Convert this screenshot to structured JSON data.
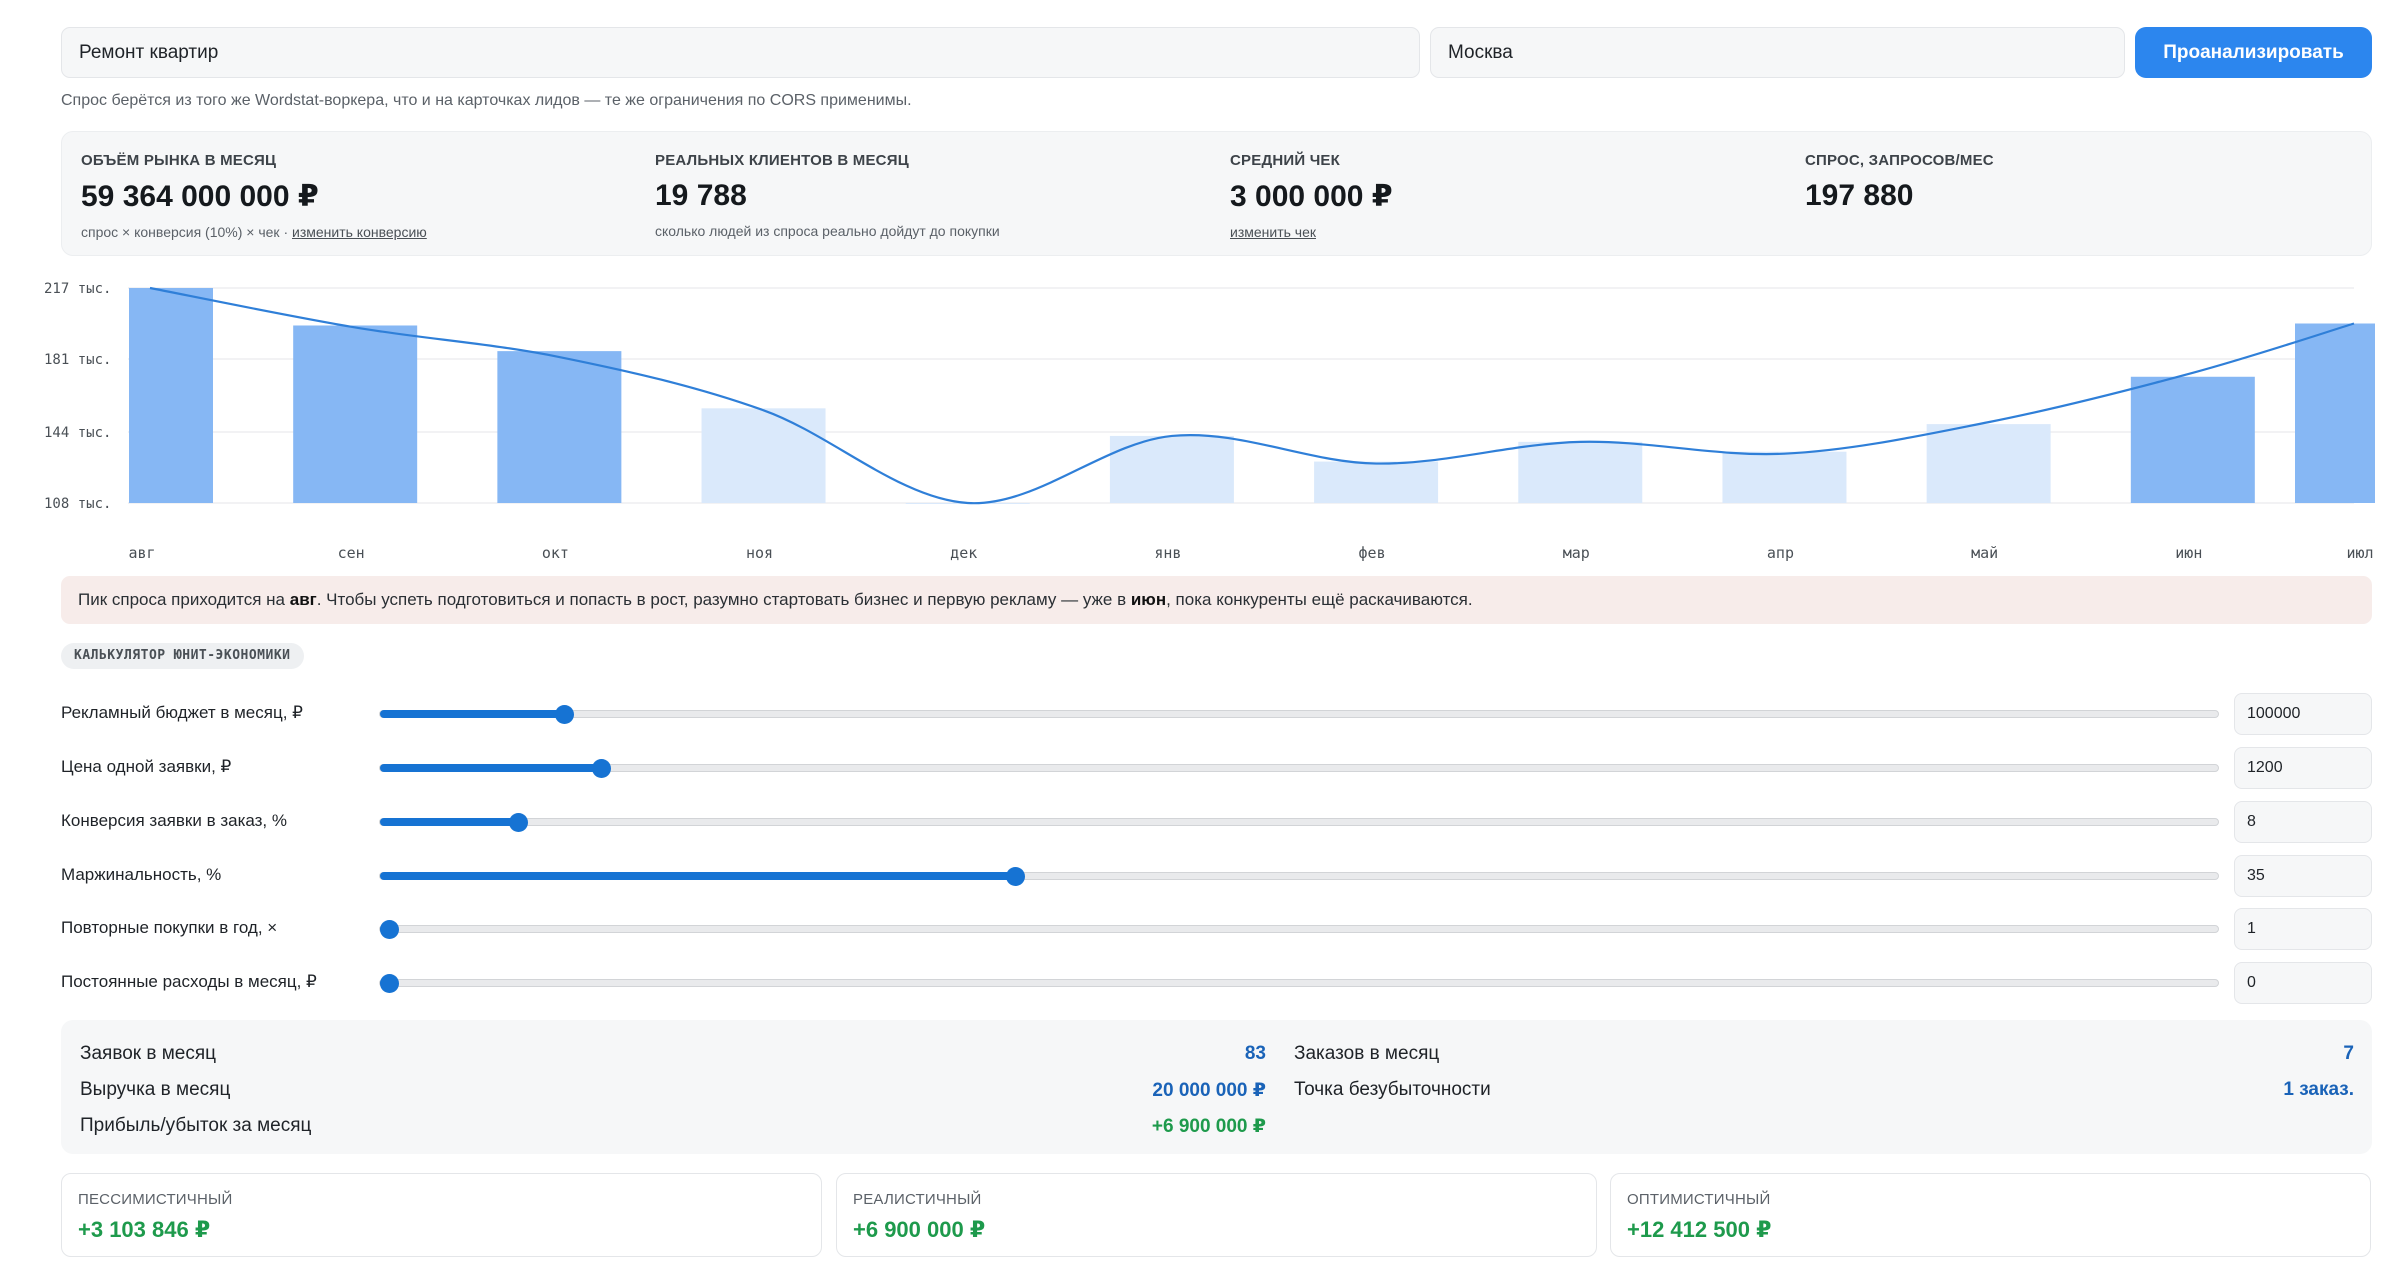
{
  "search": {
    "query": "Ремонт квартир",
    "city": "Москва",
    "button_label": "Проанализировать",
    "note": "Спрос берётся из того же Wordstat-воркера, что и на карточках лидов — те же ограничения по CORS применимы."
  },
  "metrics": [
    {
      "label": "ОБЪЁМ РЫНКА В МЕСЯЦ",
      "value": "59 364 000 000 ₽",
      "sub": "спрос × конверсия (10%) × чек · ",
      "link": "изменить конверсию"
    },
    {
      "label": "РЕАЛЬНЫХ КЛИЕНТОВ В МЕСЯЦ",
      "value": "19 788",
      "sub": "сколько людей из спроса реально дойдут до покупки",
      "link": ""
    },
    {
      "label": "СРЕДНИЙ ЧЕК",
      "value": "3 000 000 ₽",
      "sub": "",
      "link": "изменить чек"
    },
    {
      "label": "СПРОС, ЗАПРОСОВ/МЕС",
      "value": "197 880",
      "sub": "",
      "link": ""
    }
  ],
  "chart_data": {
    "type": "bar",
    "categories": [
      "авг",
      "сен",
      "окт",
      "ноя",
      "дек",
      "янв",
      "фев",
      "мар",
      "апр",
      "май",
      "июн",
      "июл"
    ],
    "values": [
      217,
      198,
      185,
      156,
      108,
      142,
      129,
      139,
      134,
      148,
      172,
      199
    ],
    "highlighted": [
      true,
      true,
      true,
      false,
      false,
      false,
      false,
      false,
      false,
      false,
      true,
      true
    ],
    "trend_line": [
      217,
      197,
      182,
      155,
      108,
      142,
      128,
      139,
      133,
      149,
      174,
      199
    ],
    "y_ticks": [
      "217 тыс.",
      "181 тыс.",
      "144 тыс.",
      "108 тыс."
    ],
    "y_tick_values": [
      217,
      181,
      144,
      108
    ],
    "ylim": [
      108,
      217
    ],
    "unit": "тыс.",
    "grid": true,
    "colors": {
      "bar_strong": "#86b7f4",
      "bar_light": "#dae9fb",
      "line": "#2f7fd8",
      "grid": "#e4e6e9"
    }
  },
  "banner": {
    "prefix": "Пик спроса приходится на ",
    "peak_month": "авг",
    "middle": ". Чтобы успеть подготовиться и попасть в рост, разумно стартовать бизнес и первую рекламу — уже в ",
    "start_month": "июн",
    "suffix": ", пока конкуренты ещё раскачиваются."
  },
  "calculator": {
    "tag": "КАЛЬКУЛЯТОР ЮНИТ-ЭКОНОМИКИ",
    "sliders": [
      {
        "label": "Рекламный бюджет в месяц, ₽",
        "value": "100000",
        "fraction": 0.1
      },
      {
        "label": "Цена одной заявки, ₽",
        "value": "1200",
        "fraction": 0.12
      },
      {
        "label": "Конверсия заявки в заказ, %",
        "value": "8",
        "fraction": 0.075
      },
      {
        "label": "Маржинальность, %",
        "value": "35",
        "fraction": 0.345
      },
      {
        "label": "Повторные покупки в год, ×",
        "value": "1",
        "fraction": 0.005
      },
      {
        "label": "Постоянные расходы в месяц, ₽",
        "value": "0",
        "fraction": 0.005
      }
    ]
  },
  "results": {
    "leads_label": "Заявок в месяц",
    "leads_value": "83",
    "orders_label": "Заказов в месяц",
    "orders_value": "7",
    "revenue_label": "Выручка в месяц",
    "revenue_value": "20 000 000 ₽",
    "breakeven_label": "Точка безубыточности",
    "breakeven_value": "1 заказ.",
    "profit_label": "Прибыль/убыток за месяц",
    "profit_value": "+6 900 000 ₽"
  },
  "scenarios": [
    {
      "label": "ПЕССИМИСТИЧНЫЙ",
      "value": "+3 103 846 ₽"
    },
    {
      "label": "РЕАЛИСТИЧНЫЙ",
      "value": "+6 900 000 ₽"
    },
    {
      "label": "ОПТИМИСТИЧНЫЙ",
      "value": "+12 412 500 ₽"
    }
  ]
}
